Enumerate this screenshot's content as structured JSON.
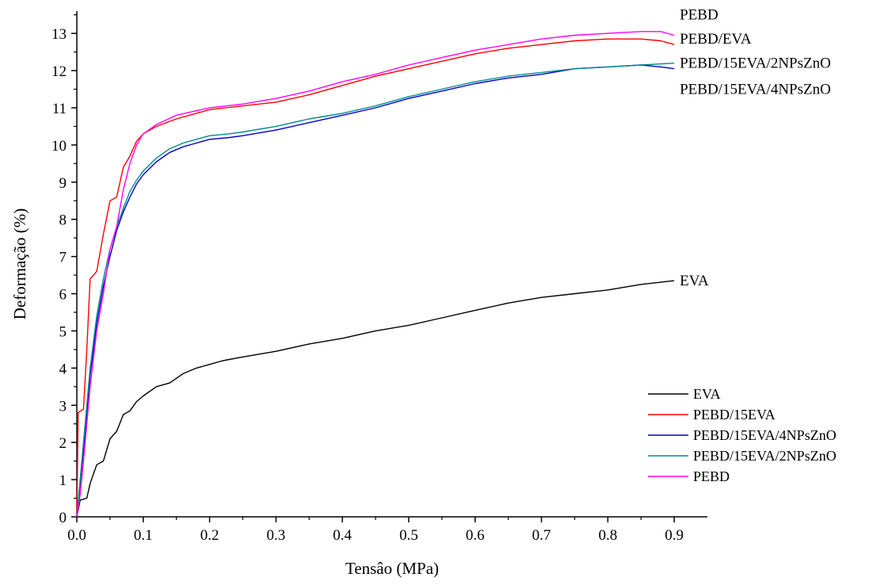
{
  "chart_data": {
    "type": "line",
    "xlabel": "Tensâo (MPa)",
    "ylabel": "Deformação (%)",
    "xlim": [
      0,
      0.95
    ],
    "ylim": [
      0,
      13.6
    ],
    "xticks": [
      "0.0",
      "0.1",
      "0.2",
      "0.3",
      "0.4",
      "0.5",
      "0.6",
      "0.7",
      "0.8",
      "0.9"
    ],
    "yticks": [
      "0",
      "1",
      "2",
      "3",
      "4",
      "5",
      "6",
      "7",
      "8",
      "9",
      "10",
      "11",
      "12",
      "13"
    ],
    "grid": false,
    "legend_position": "bottom-right",
    "series": [
      {
        "name": "EVA",
        "color": "#000000",
        "points": [
          [
            0,
            0
          ],
          [
            0.005,
            0.45
          ],
          [
            0.015,
            0.5
          ],
          [
            0.02,
            0.9
          ],
          [
            0.03,
            1.4
          ],
          [
            0.04,
            1.5
          ],
          [
            0.05,
            2.1
          ],
          [
            0.06,
            2.3
          ],
          [
            0.07,
            2.75
          ],
          [
            0.08,
            2.85
          ],
          [
            0.09,
            3.1
          ],
          [
            0.1,
            3.25
          ],
          [
            0.12,
            3.5
          ],
          [
            0.14,
            3.6
          ],
          [
            0.16,
            3.85
          ],
          [
            0.18,
            4.0
          ],
          [
            0.2,
            4.1
          ],
          [
            0.22,
            4.2
          ],
          [
            0.25,
            4.3
          ],
          [
            0.3,
            4.45
          ],
          [
            0.35,
            4.65
          ],
          [
            0.4,
            4.8
          ],
          [
            0.45,
            5.0
          ],
          [
            0.5,
            5.15
          ],
          [
            0.55,
            5.35
          ],
          [
            0.6,
            5.55
          ],
          [
            0.65,
            5.75
          ],
          [
            0.7,
            5.9
          ],
          [
            0.75,
            6.0
          ],
          [
            0.8,
            6.1
          ],
          [
            0.85,
            6.25
          ],
          [
            0.9,
            6.35
          ]
        ]
      },
      {
        "name": "PEBD/15EVA",
        "color": "#ff0000",
        "points": [
          [
            0,
            0
          ],
          [
            0.002,
            2.8
          ],
          [
            0.01,
            2.9
          ],
          [
            0.015,
            4.5
          ],
          [
            0.02,
            6.4
          ],
          [
            0.03,
            6.6
          ],
          [
            0.04,
            7.6
          ],
          [
            0.05,
            8.5
          ],
          [
            0.06,
            8.6
          ],
          [
            0.07,
            9.4
          ],
          [
            0.08,
            9.7
          ],
          [
            0.09,
            10.1
          ],
          [
            0.1,
            10.3
          ],
          [
            0.12,
            10.5
          ],
          [
            0.15,
            10.7
          ],
          [
            0.2,
            10.95
          ],
          [
            0.25,
            11.05
          ],
          [
            0.3,
            11.15
          ],
          [
            0.35,
            11.35
          ],
          [
            0.4,
            11.6
          ],
          [
            0.45,
            11.85
          ],
          [
            0.5,
            12.05
          ],
          [
            0.55,
            12.25
          ],
          [
            0.6,
            12.45
          ],
          [
            0.65,
            12.6
          ],
          [
            0.7,
            12.7
          ],
          [
            0.75,
            12.8
          ],
          [
            0.8,
            12.85
          ],
          [
            0.85,
            12.85
          ],
          [
            0.88,
            12.8
          ],
          [
            0.9,
            12.7
          ]
        ]
      },
      {
        "name": "PEBD/15EVA/4NPsZnO",
        "color": "#0000cc",
        "points": [
          [
            0,
            0
          ],
          [
            0.01,
            1.8
          ],
          [
            0.02,
            3.8
          ],
          [
            0.03,
            5.2
          ],
          [
            0.04,
            6.2
          ],
          [
            0.05,
            7.0
          ],
          [
            0.06,
            7.7
          ],
          [
            0.07,
            8.2
          ],
          [
            0.08,
            8.6
          ],
          [
            0.09,
            8.95
          ],
          [
            0.1,
            9.2
          ],
          [
            0.12,
            9.55
          ],
          [
            0.14,
            9.8
          ],
          [
            0.16,
            9.95
          ],
          [
            0.18,
            10.05
          ],
          [
            0.2,
            10.15
          ],
          [
            0.23,
            10.2
          ],
          [
            0.25,
            10.25
          ],
          [
            0.3,
            10.4
          ],
          [
            0.35,
            10.6
          ],
          [
            0.4,
            10.8
          ],
          [
            0.45,
            11.0
          ],
          [
            0.5,
            11.25
          ],
          [
            0.55,
            11.45
          ],
          [
            0.6,
            11.65
          ],
          [
            0.65,
            11.8
          ],
          [
            0.7,
            11.9
          ],
          [
            0.75,
            12.05
          ],
          [
            0.8,
            12.1
          ],
          [
            0.85,
            12.15
          ],
          [
            0.88,
            12.1
          ],
          [
            0.9,
            12.05
          ]
        ]
      },
      {
        "name": "PEBD/15EVA/2NPsZnO",
        "color": "#008b8b",
        "points": [
          [
            0,
            0
          ],
          [
            0.01,
            2.0
          ],
          [
            0.02,
            4.0
          ],
          [
            0.03,
            5.4
          ],
          [
            0.04,
            6.4
          ],
          [
            0.05,
            7.2
          ],
          [
            0.06,
            7.8
          ],
          [
            0.07,
            8.3
          ],
          [
            0.08,
            8.75
          ],
          [
            0.09,
            9.05
          ],
          [
            0.1,
            9.3
          ],
          [
            0.12,
            9.65
          ],
          [
            0.14,
            9.9
          ],
          [
            0.16,
            10.05
          ],
          [
            0.18,
            10.15
          ],
          [
            0.2,
            10.25
          ],
          [
            0.23,
            10.3
          ],
          [
            0.25,
            10.35
          ],
          [
            0.3,
            10.5
          ],
          [
            0.35,
            10.7
          ],
          [
            0.4,
            10.85
          ],
          [
            0.45,
            11.05
          ],
          [
            0.5,
            11.3
          ],
          [
            0.55,
            11.5
          ],
          [
            0.6,
            11.7
          ],
          [
            0.65,
            11.85
          ],
          [
            0.7,
            11.95
          ],
          [
            0.75,
            12.05
          ],
          [
            0.8,
            12.1
          ],
          [
            0.85,
            12.15
          ],
          [
            0.9,
            12.2
          ]
        ]
      },
      {
        "name": "PEBD",
        "color": "#ff00ff",
        "points": [
          [
            0,
            0
          ],
          [
            0.005,
            0.6
          ],
          [
            0.01,
            1.5
          ],
          [
            0.02,
            3.5
          ],
          [
            0.03,
            5.0
          ],
          [
            0.04,
            6.0
          ],
          [
            0.05,
            7.2
          ],
          [
            0.06,
            7.8
          ],
          [
            0.07,
            8.8
          ],
          [
            0.08,
            9.5
          ],
          [
            0.09,
            10.0
          ],
          [
            0.1,
            10.3
          ],
          [
            0.12,
            10.55
          ],
          [
            0.15,
            10.8
          ],
          [
            0.2,
            11.0
          ],
          [
            0.25,
            11.1
          ],
          [
            0.3,
            11.25
          ],
          [
            0.35,
            11.45
          ],
          [
            0.4,
            11.7
          ],
          [
            0.45,
            11.9
          ],
          [
            0.5,
            12.15
          ],
          [
            0.55,
            12.35
          ],
          [
            0.6,
            12.55
          ],
          [
            0.65,
            12.7
          ],
          [
            0.7,
            12.85
          ],
          [
            0.75,
            12.95
          ],
          [
            0.8,
            13.0
          ],
          [
            0.85,
            13.05
          ],
          [
            0.88,
            13.05
          ],
          [
            0.9,
            12.95
          ]
        ]
      }
    ],
    "end_labels": [
      {
        "text": "PEBD",
        "x": 0.9,
        "y": 13.5
      },
      {
        "text": "PEBD/EVA",
        "x": 0.9,
        "y": 12.85
      },
      {
        "text": "PEBD/15EVA/2NPsZnO",
        "x": 0.9,
        "y": 12.2
      },
      {
        "text": "PEBD/15EVA/4NPsZnO",
        "x": 0.9,
        "y": 11.5
      },
      {
        "text": "EVA",
        "x": 0.9,
        "y": 6.35
      }
    ]
  }
}
